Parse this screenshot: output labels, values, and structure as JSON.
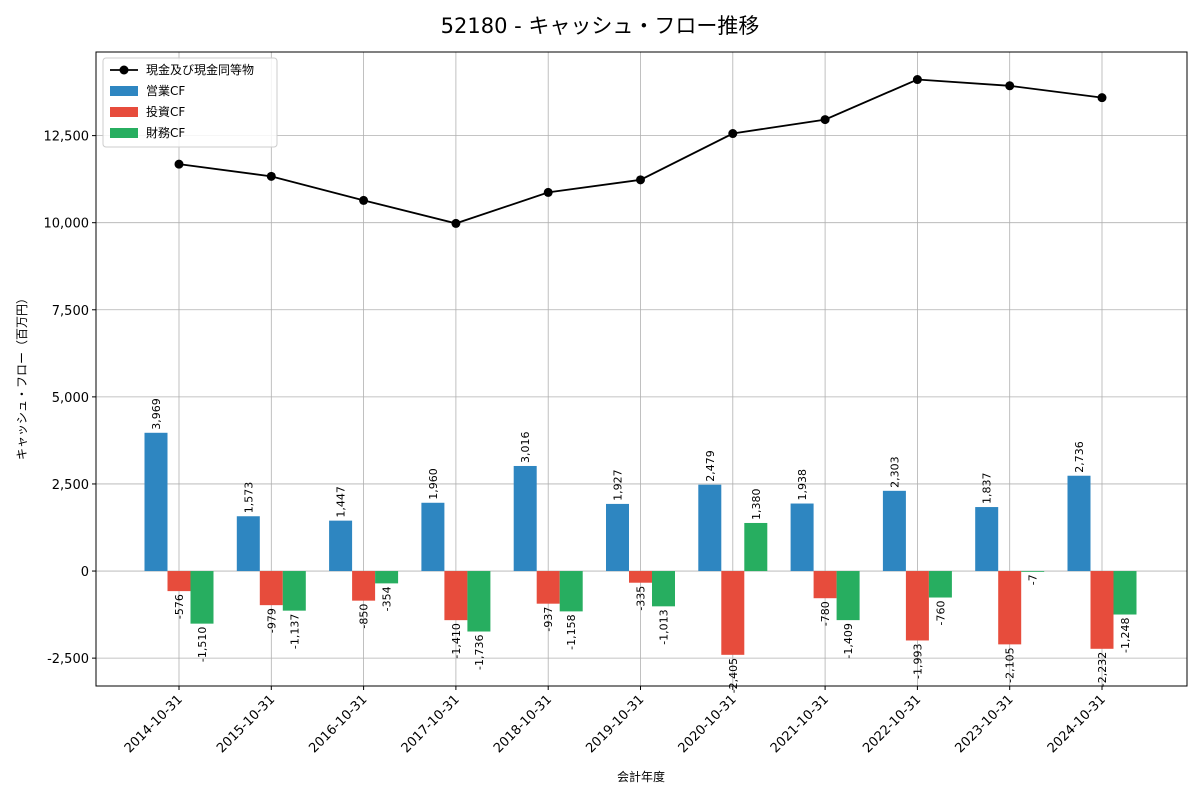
{
  "chart_data": {
    "type": "bar",
    "title": "52180 - キャッシュ・フロー推移",
    "xlabel": "会計年度",
    "ylabel": "キャッシュ・フロー（百万円）",
    "ylim": [
      -3300,
      14900
    ],
    "yticks": [
      -2500,
      0,
      2500,
      5000,
      7500,
      10000,
      12500
    ],
    "ytick_labels": [
      "-2,500",
      "0",
      "2,500",
      "5,000",
      "7,500",
      "10,000",
      "12,500"
    ],
    "grid": true,
    "legend_position": "top-left",
    "categories": [
      "2014-10-31",
      "2015-10-31",
      "2016-10-31",
      "2017-10-31",
      "2018-10-31",
      "2019-10-31",
      "2020-10-31",
      "2021-10-31",
      "2022-10-31",
      "2023-10-31",
      "2024-10-31"
    ],
    "series": [
      {
        "name": "営業CF",
        "kind": "bar",
        "color": "#2e86c1",
        "values": [
          3969,
          1573,
          1447,
          1960,
          3016,
          1927,
          2479,
          1938,
          2303,
          1837,
          2736
        ],
        "labels": [
          "3,969",
          "1,573",
          "1,447",
          "1,960",
          "3,016",
          "1,927",
          "2,479",
          "1,938",
          "2,303",
          "1,837",
          "2,736"
        ]
      },
      {
        "name": "投資CF",
        "kind": "bar",
        "color": "#e74c3c",
        "values": [
          -576,
          -979,
          -850,
          -1410,
          -937,
          -335,
          -2405,
          -780,
          -1993,
          -2105,
          -2232
        ],
        "labels": [
          "-576",
          "-979",
          "-850",
          "-1,410",
          "-937",
          "-335",
          "-2,405",
          "-780",
          "-1,993",
          "-2,105",
          "-2,232"
        ]
      },
      {
        "name": "財務CF",
        "kind": "bar",
        "color": "#27ae60",
        "values": [
          -1510,
          -1137,
          -354,
          -1736,
          -1158,
          -1013,
          1380,
          -1409,
          -760,
          -7,
          -1248
        ],
        "labels": [
          "-1,510",
          "-1,137",
          "-354",
          "-1,736",
          "-1,158",
          "-1,013",
          "1,380",
          "-1,409",
          "-760",
          "-7",
          "-1,248"
        ]
      },
      {
        "name": "現金及び現金同等物",
        "kind": "line",
        "color": "#000000",
        "values": [
          11680,
          11330,
          10640,
          9980,
          10870,
          11230,
          12560,
          12960,
          14110,
          13930,
          13590
        ]
      }
    ]
  }
}
